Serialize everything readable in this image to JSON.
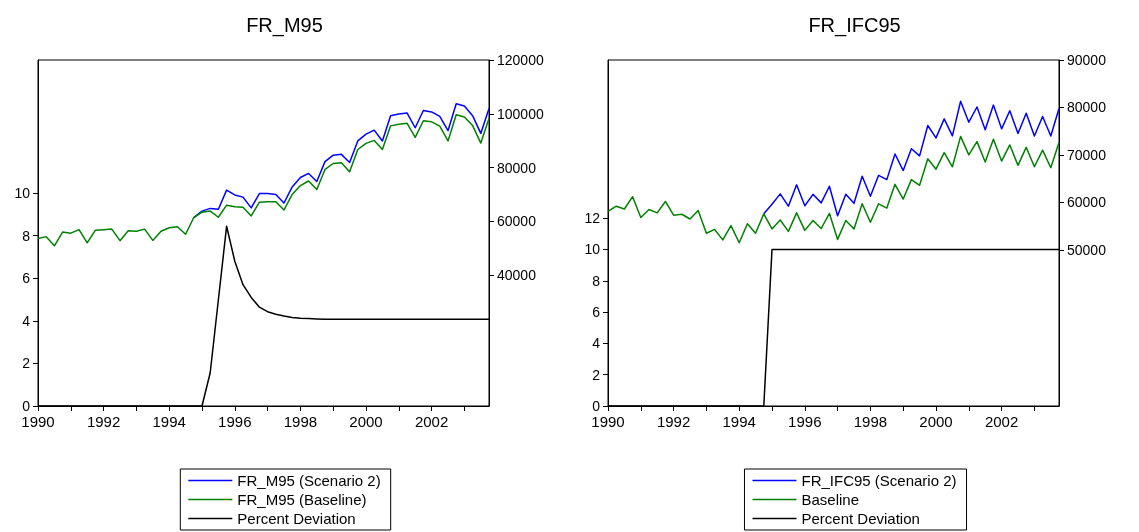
{
  "chart_data": [
    {
      "type": "line",
      "title": "FR_M95",
      "legend": "bottom",
      "x": [
        1990,
        1990.25,
        1990.5,
        1990.75,
        1991,
        1991.25,
        1991.5,
        1991.75,
        1992,
        1992.25,
        1992.5,
        1992.75,
        1993,
        1993.25,
        1993.5,
        1993.75,
        1994,
        1994.25,
        1994.5,
        1994.75,
        1995,
        1995.25,
        1995.5,
        1995.75,
        1996,
        1996.25,
        1996.5,
        1996.75,
        1997,
        1997.25,
        1997.5,
        1997.75,
        1998,
        1998.25,
        1998.5,
        1998.75,
        1999,
        1999.25,
        1999.5,
        1999.75,
        2000,
        2000.25,
        2000.5,
        2000.75,
        2001,
        2001.25,
        2001.5,
        2001.75,
        2002,
        2002.25,
        2002.5,
        2002.75,
        2003,
        2003.25,
        2003.5,
        2003.75
      ],
      "xlim": [
        1990,
        2003.75
      ],
      "xticks": [
        1990,
        {
          "value": 1991,
          "label": null
        },
        1992,
        {
          "value": 1993,
          "label": null
        },
        1994,
        {
          "value": 1995,
          "label": null
        },
        1996,
        {
          "value": 1997,
          "label": null
        },
        1998,
        {
          "value": 1999,
          "label": null
        },
        2000,
        {
          "value": 2001,
          "label": null
        },
        2002,
        {
          "value": 2003,
          "label": null
        }
      ],
      "ylim": [
        0,
        16.25
      ],
      "yticks": [
        0,
        2,
        4,
        6,
        8,
        10
      ],
      "y2lim": [
        -8700,
        120000
      ],
      "y2ticks": [
        40000,
        60000,
        80000,
        100000,
        120000
      ],
      "series": [
        {
          "name": "FR_M95 (Scenario 2)",
          "color": "#0000ff",
          "axis": "y2",
          "values": [
            null,
            null,
            null,
            null,
            null,
            null,
            null,
            null,
            null,
            null,
            null,
            null,
            null,
            null,
            null,
            null,
            null,
            null,
            null,
            61400,
            63800,
            64800,
            64500,
            71600,
            69800,
            69000,
            65000,
            70300,
            70300,
            70000,
            66800,
            72800,
            76300,
            77800,
            74800,
            82200,
            84600,
            84900,
            81900,
            89900,
            92400,
            93900,
            89900,
            99300,
            99900,
            100300,
            94800,
            101200,
            100700,
            99000,
            93700,
            103700,
            102900,
            99300,
            92700,
            102000
          ]
        },
        {
          "name": "FR_M95 (Baseline)",
          "color": "#008000",
          "axis": "y2",
          "values": [
            53600,
            54300,
            50900,
            56000,
            55600,
            56900,
            52000,
            56700,
            56900,
            57100,
            52800,
            56500,
            56300,
            57100,
            52900,
            56300,
            57600,
            58000,
            55200,
            61400,
            63400,
            63800,
            61500,
            66000,
            65400,
            65200,
            62000,
            67100,
            67300,
            67300,
            64200,
            70000,
            73300,
            75000,
            71800,
            79300,
            81500,
            81800,
            78400,
            86700,
            89000,
            90100,
            86700,
            95500,
            96100,
            96500,
            91200,
            97400,
            97000,
            95400,
            89900,
            99600,
            98800,
            95600,
            89100,
            98200
          ]
        },
        {
          "name": "Percent Deviation",
          "color": "#000000",
          "axis": "y",
          "values": [
            0,
            0,
            0,
            0,
            0,
            0,
            0,
            0,
            0,
            0,
            0,
            0,
            0,
            0,
            0,
            0,
            0,
            0,
            0,
            0,
            0,
            1.56,
            5.0,
            8.44,
            6.8,
            5.7,
            5.1,
            4.64,
            4.43,
            4.31,
            4.23,
            4.16,
            4.12,
            4.11,
            4.09,
            4.07,
            4.07,
            4.07,
            4.07,
            4.07,
            4.07,
            4.07,
            4.07,
            4.07,
            4.07,
            4.07,
            4.07,
            4.07,
            4.07,
            4.07,
            4.07,
            4.07,
            4.07,
            4.07,
            4.07,
            4.07
          ]
        }
      ]
    },
    {
      "type": "line",
      "title": "FR_IFC95",
      "legend": "bottom",
      "x": [
        1990,
        1990.25,
        1990.5,
        1990.75,
        1991,
        1991.25,
        1991.5,
        1991.75,
        1992,
        1992.25,
        1992.5,
        1992.75,
        1993,
        1993.25,
        1993.5,
        1993.75,
        1994,
        1994.25,
        1994.5,
        1994.75,
        1995,
        1995.25,
        1995.5,
        1995.75,
        1996,
        1996.25,
        1996.5,
        1996.75,
        1997,
        1997.25,
        1997.5,
        1997.75,
        1998,
        1998.25,
        1998.5,
        1998.75,
        1999,
        1999.25,
        1999.5,
        1999.75,
        2000,
        2000.25,
        2000.5,
        2000.75,
        2001,
        2001.25,
        2001.5,
        2001.75,
        2002,
        2002.25,
        2002.5,
        2002.75,
        2003,
        2003.25,
        2003.5,
        2003.75
      ],
      "xlim": [
        1990,
        2003.75
      ],
      "xticks": [
        1990,
        {
          "value": 1991,
          "label": null
        },
        1992,
        {
          "value": 1993,
          "label": null
        },
        1994,
        {
          "value": 1995,
          "label": null
        },
        1996,
        {
          "value": 1997,
          "label": null
        },
        1998,
        {
          "value": 1999,
          "label": null
        },
        2000,
        {
          "value": 2001,
          "label": null
        },
        2002,
        {
          "value": 2003,
          "label": null
        }
      ],
      "ylim": [
        0,
        22.1
      ],
      "yticks": [
        0,
        2,
        4,
        6,
        8,
        10,
        12
      ],
      "y2lim": [
        17100,
        90000
      ],
      "y2ticks": [
        50000,
        60000,
        70000,
        80000,
        90000
      ],
      "series": [
        {
          "name": "FR_IFC95 (Scenario 2)",
          "color": "#0000ff",
          "axis": "y2",
          "values": [
            null,
            null,
            null,
            null,
            null,
            null,
            null,
            null,
            null,
            null,
            null,
            null,
            null,
            null,
            null,
            null,
            null,
            null,
            null,
            57600,
            59600,
            61800,
            59200,
            63700,
            59300,
            61700,
            59900,
            63400,
            57200,
            61700,
            59800,
            65500,
            61300,
            65700,
            64800,
            70200,
            66700,
            71300,
            69800,
            76200,
            73600,
            77600,
            74000,
            81300,
            76900,
            80100,
            75300,
            80500,
            75500,
            79300,
            74500,
            78800,
            74000,
            78100,
            74000,
            79800
          ]
        },
        {
          "name": "Baseline",
          "color": "#008000",
          "axis": "y2",
          "values": [
            58100,
            59200,
            58600,
            61200,
            56800,
            58500,
            57800,
            60200,
            57300,
            57500,
            56500,
            58300,
            53500,
            54300,
            52100,
            55100,
            51500,
            55500,
            53500,
            57600,
            54400,
            56300,
            53900,
            57800,
            54100,
            56200,
            54500,
            57700,
            52200,
            56200,
            54400,
            59700,
            55800,
            59700,
            58800,
            63800,
            60700,
            64800,
            63600,
            69200,
            67000,
            70500,
            67500,
            73900,
            70000,
            72800,
            68500,
            73300,
            68700,
            72100,
            67800,
            71600,
            67500,
            71000,
            67300,
            72600
          ]
        },
        {
          "name": "Percent Deviation",
          "color": "#000000",
          "axis": "y",
          "values": [
            0,
            0,
            0,
            0,
            0,
            0,
            0,
            0,
            0,
            0,
            0,
            0,
            0,
            0,
            0,
            0,
            0,
            0,
            0,
            0,
            10,
            10,
            10,
            10,
            10,
            10,
            10,
            10,
            10,
            10,
            10,
            10,
            10,
            10,
            10,
            10,
            10,
            10,
            10,
            10,
            10,
            10,
            10,
            10,
            10,
            10,
            10,
            10,
            10,
            10,
            10,
            10,
            10,
            10,
            10,
            10
          ]
        }
      ]
    }
  ]
}
